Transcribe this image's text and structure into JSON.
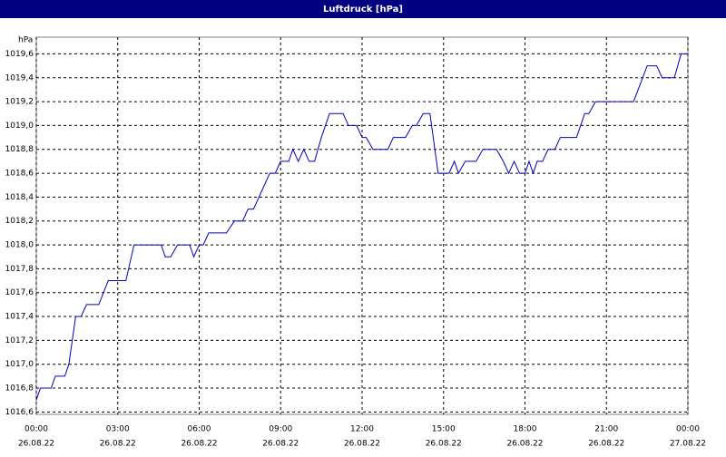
{
  "chart_data": {
    "type": "line",
    "title": "Luftdruck [hPa]",
    "y_label": "hPa",
    "x": [
      0,
      0.15,
      0.55,
      0.7,
      1.05,
      1.2,
      1.45,
      1.65,
      1.85,
      2.3,
      2.65,
      3.3,
      3.6,
      4.6,
      4.75,
      4.95,
      5.2,
      5.65,
      5.8,
      6.0,
      6.15,
      6.35,
      7.0,
      7.3,
      7.6,
      7.8,
      8.0,
      8.2,
      8.4,
      8.6,
      8.8,
      9.0,
      9.3,
      9.45,
      9.65,
      9.85,
      10.05,
      10.25,
      10.5,
      10.8,
      11.3,
      11.5,
      11.8,
      12.0,
      12.15,
      12.4,
      12.95,
      13.15,
      13.6,
      13.85,
      14.0,
      14.25,
      14.5,
      14.8,
      15.2,
      15.4,
      15.55,
      15.8,
      16.2,
      16.45,
      16.95,
      17.2,
      17.4,
      17.6,
      17.8,
      18.0,
      18.15,
      18.3,
      18.45,
      18.65,
      18.85,
      19.1,
      19.3,
      19.9,
      20.2,
      20.35,
      20.6,
      22.0,
      22.5,
      22.85,
      23.05,
      23.5,
      23.75,
      24.0
    ],
    "series": [
      {
        "name": "Luftdruck",
        "color": "#0000c0",
        "values": [
          1016.7,
          1016.8,
          1016.8,
          1016.9,
          1016.9,
          1017.0,
          1017.4,
          1017.4,
          1017.5,
          1017.5,
          1017.7,
          1017.7,
          1018.0,
          1018.0,
          1017.9,
          1017.9,
          1018.0,
          1018.0,
          1017.9,
          1018.0,
          1018.0,
          1018.1,
          1018.1,
          1018.2,
          1018.2,
          1018.3,
          1018.3,
          1018.4,
          1018.5,
          1018.6,
          1018.6,
          1018.7,
          1018.7,
          1018.8,
          1018.7,
          1018.8,
          1018.7,
          1018.7,
          1018.9,
          1019.1,
          1019.1,
          1019.0,
          1019.0,
          1018.9,
          1018.9,
          1018.8,
          1018.8,
          1018.9,
          1018.9,
          1019.0,
          1019.0,
          1019.1,
          1019.1,
          1018.6,
          1018.6,
          1018.7,
          1018.6,
          1018.7,
          1018.7,
          1018.8,
          1018.8,
          1018.7,
          1018.6,
          1018.7,
          1018.6,
          1018.6,
          1018.7,
          1018.6,
          1018.7,
          1018.7,
          1018.8,
          1018.8,
          1018.9,
          1018.9,
          1019.1,
          1019.1,
          1019.2,
          1019.2,
          1019.5,
          1019.5,
          1019.4,
          1019.4,
          1019.6,
          1019.6
        ]
      }
    ],
    "xlim": [
      0,
      24
    ],
    "xticks": [
      {
        "value": 0,
        "label": "00:00",
        "date": "26.08.22"
      },
      {
        "value": 3,
        "label": "03:00",
        "date": "26.08.22"
      },
      {
        "value": 6,
        "label": "06:00",
        "date": "26.08.22"
      },
      {
        "value": 9,
        "label": "09:00",
        "date": "26.08.22"
      },
      {
        "value": 12,
        "label": "12:00",
        "date": "26.08.22"
      },
      {
        "value": 15,
        "label": "15:00",
        "date": "26.08.22"
      },
      {
        "value": 18,
        "label": "18:00",
        "date": "26.08.22"
      },
      {
        "value": 21,
        "label": "21:00",
        "date": "26.08.22"
      },
      {
        "value": 24,
        "label": "00:00",
        "date": "27.08.22"
      }
    ],
    "ylim": [
      1016.58,
      1019.74
    ],
    "yticks": [
      {
        "value": 1016.6,
        "label": "1016,6"
      },
      {
        "value": 1016.8,
        "label": "1016,8"
      },
      {
        "value": 1017.0,
        "label": "1017,0"
      },
      {
        "value": 1017.2,
        "label": "1017,2"
      },
      {
        "value": 1017.4,
        "label": "1017,4"
      },
      {
        "value": 1017.6,
        "label": "1017,6"
      },
      {
        "value": 1017.8,
        "label": "1017,8"
      },
      {
        "value": 1018.0,
        "label": "1018,0"
      },
      {
        "value": 1018.2,
        "label": "1018,2"
      },
      {
        "value": 1018.4,
        "label": "1018,4"
      },
      {
        "value": 1018.6,
        "label": "1018,6"
      },
      {
        "value": 1018.8,
        "label": "1018,8"
      },
      {
        "value": 1019.0,
        "label": "1019,0"
      },
      {
        "value": 1019.2,
        "label": "1019,2"
      },
      {
        "value": 1019.4,
        "label": "1019,4"
      },
      {
        "value": 1019.6,
        "label": "1019,6"
      }
    ],
    "grid": true
  }
}
